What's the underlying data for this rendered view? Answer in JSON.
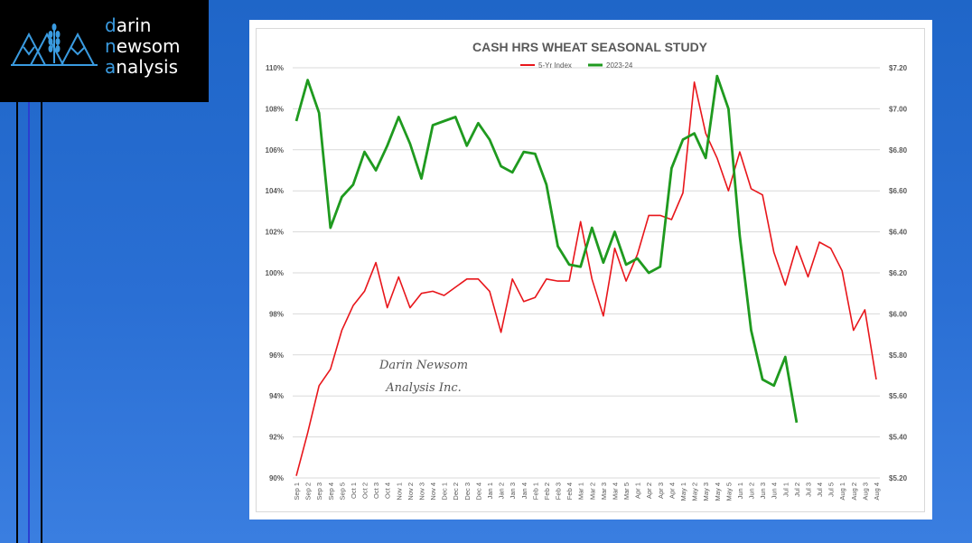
{
  "logo": {
    "line1_first": "d",
    "line1_rest": "arin",
    "line2_first": "n",
    "line2_rest": "ewsom",
    "line3_first": "a",
    "line3_rest": "nalysis",
    "accent_color": "#3a9be0",
    "icon": "wheat-mountains-icon"
  },
  "chart_data": {
    "type": "line",
    "title": "CASH HRS WHEAT SEASONAL STUDY",
    "watermark_line1": "Darin Newsom",
    "watermark_line2": "Analysis Inc.",
    "categories": [
      "Sep 1",
      "Sep 2",
      "Sep 3",
      "Sep 4",
      "Sep 5",
      "Oct 1",
      "Oct 2",
      "Oct 3",
      "Oct 4",
      "Nov 1",
      "Nov 2",
      "Nov 3",
      "Nov 4",
      "Dec 1",
      "Dec 2",
      "Dec 3",
      "Dec 4",
      "Jan 1",
      "Jan 2",
      "Jan 3",
      "Jan 4",
      "Feb 1",
      "Feb 2",
      "Feb 3",
      "Feb 4",
      "Mar 1",
      "Mar 2",
      "Mar 3",
      "Mar 4",
      "Mar 5",
      "Apr 1",
      "Apr 2",
      "Apr 3",
      "Apr 4",
      "May 1",
      "May 2",
      "May 3",
      "May 4",
      "May 5",
      "Jun 1",
      "Jun 2",
      "Jun 3",
      "Jun 4",
      "Jul 1",
      "Jul 2",
      "Jul 3",
      "Jul 4",
      "Jul 5",
      "Aug 1",
      "Aug 2",
      "Aug 3",
      "Aug 4"
    ],
    "left_axis": {
      "ylim": [
        90,
        110
      ],
      "ticks": [
        "90%",
        "92%",
        "94%",
        "96%",
        "98%",
        "100%",
        "102%",
        "104%",
        "106%",
        "108%",
        "110%"
      ]
    },
    "right_axis": {
      "ylim": [
        5.2,
        7.2
      ],
      "ticks": [
        "$5.20",
        "$5.40",
        "$5.60",
        "$5.80",
        "$6.00",
        "$6.20",
        "$6.40",
        "$6.60",
        "$6.80",
        "$7.00",
        "$7.20"
      ]
    },
    "series": [
      {
        "name": "5-Yr Index",
        "color": "#e8161b",
        "axis": "left",
        "values": [
          90.1,
          92.2,
          94.5,
          95.3,
          97.2,
          98.4,
          99.1,
          100.5,
          98.3,
          99.8,
          98.3,
          99.0,
          99.1,
          98.9,
          99.3,
          99.7,
          99.7,
          99.1,
          97.1,
          99.7,
          98.6,
          98.8,
          99.7,
          99.6,
          99.6,
          102.5,
          99.7,
          97.9,
          101.2,
          99.6,
          100.9,
          102.8,
          102.8,
          102.6,
          103.9,
          109.3,
          106.8,
          105.6,
          104.0,
          105.9,
          104.1,
          103.8,
          101.0,
          99.4,
          101.3,
          99.8,
          101.5,
          101.2,
          100.1,
          97.2,
          98.2,
          94.8
        ]
      },
      {
        "name": "2023-24",
        "color": "#1f9a1f",
        "axis": "right",
        "values": [
          6.94,
          7.14,
          6.98,
          6.42,
          6.57,
          6.63,
          6.79,
          6.7,
          6.82,
          6.96,
          6.83,
          6.66,
          6.92,
          6.94,
          6.96,
          6.82,
          6.93,
          6.85,
          6.72,
          6.69,
          6.79,
          6.78,
          6.63,
          6.33,
          6.24,
          6.23,
          6.42,
          6.25,
          6.4,
          6.24,
          6.27,
          6.2,
          6.23,
          6.71,
          6.85,
          6.88,
          6.76,
          7.16,
          7.0,
          6.38,
          5.92,
          5.68,
          5.65,
          5.79,
          5.47,
          null,
          null,
          null,
          null,
          null,
          null,
          null
        ]
      }
    ],
    "legend_position": "top-center",
    "grid": true
  }
}
